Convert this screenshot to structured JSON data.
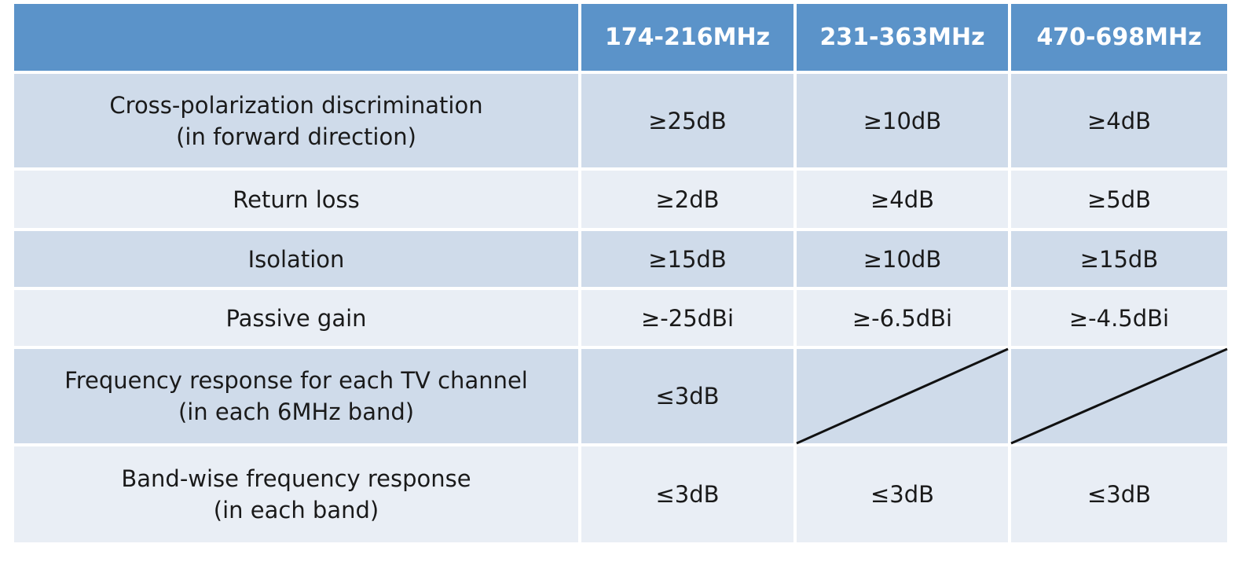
{
  "table": {
    "columns": [
      "174-216MHz",
      "231-363MHz",
      "470-698MHz"
    ],
    "rows": [
      {
        "label": [
          "Cross-polarization discrimination",
          "(in forward direction)"
        ],
        "values": [
          "≥25dB",
          "≥10dB",
          "≥4dB"
        ]
      },
      {
        "label": [
          "Return loss"
        ],
        "values": [
          "≥2dB",
          "≥4dB",
          "≥5dB"
        ]
      },
      {
        "label": [
          "Isolation"
        ],
        "values": [
          "≥15dB",
          "≥10dB",
          "≥15dB"
        ]
      },
      {
        "label": [
          "Passive gain"
        ],
        "values": [
          "≥-25dBi",
          "≥-6.5dBi",
          "≥-4.5dBi"
        ]
      },
      {
        "label": [
          "Frequency response for each TV channel",
          "(in each 6MHz band)"
        ],
        "values": [
          "≤3dB",
          null,
          null
        ]
      },
      {
        "label": [
          "Band-wise frequency response",
          "(in each band)"
        ],
        "values": [
          "≤3dB",
          "≤3dB",
          "≤3dB"
        ]
      }
    ]
  }
}
